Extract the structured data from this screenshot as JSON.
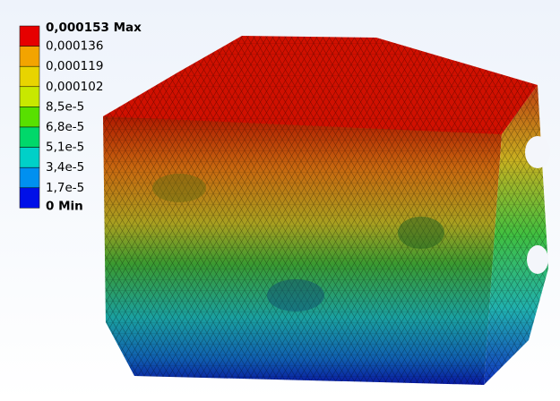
{
  "legend": {
    "labels": [
      "0,000153 Max",
      "0,000136",
      "0,000119",
      "0,000102",
      "8,5e-5",
      "6,8e-5",
      "5,1e-5",
      "3,4e-5",
      "1,7e-5",
      "0 Min"
    ],
    "colors": [
      "#e60000",
      "#f3a400",
      "#e8d400",
      "#c8e800",
      "#58e000",
      "#00d86a",
      "#00d0c8",
      "#0090f0",
      "#0010e8"
    ]
  }
}
